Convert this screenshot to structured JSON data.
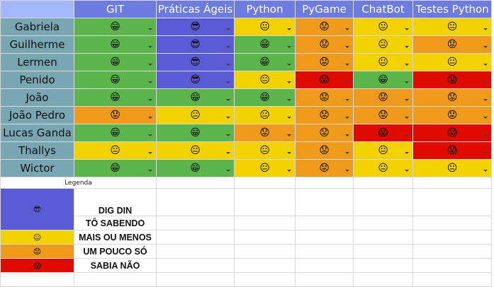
{
  "sheet": {
    "columns": [
      "GIT",
      "Práticas Ágeis",
      "Python",
      "PyGame",
      "ChatBot",
      "Testes Python"
    ],
    "rows": [
      {
        "name": "Gabriela",
        "levels": [
          "sab",
          "dig",
          "mai",
          "pou",
          "mai",
          "mai"
        ]
      },
      {
        "name": "Guilherme",
        "levels": [
          "sab",
          "dig",
          "sab",
          "pou",
          "mai",
          "pou"
        ]
      },
      {
        "name": "Lermen",
        "levels": [
          "sab",
          "dig",
          "sab",
          "pou",
          "mai",
          "mai"
        ]
      },
      {
        "name": "Penido",
        "levels": [
          "sab",
          "dig",
          "mai",
          "nao",
          "sab",
          "nao"
        ]
      },
      {
        "name": "João",
        "levels": [
          "sab",
          "sab",
          "sab",
          "pou",
          "pou",
          "pou"
        ]
      },
      {
        "name": "João Pedro",
        "levels": [
          "pou",
          "mai",
          "mai",
          "pou",
          "pou",
          "pou"
        ]
      },
      {
        "name": "Lucas Ganda",
        "levels": [
          "sab",
          "sab",
          "pou",
          "pou",
          "nao",
          "nao"
        ]
      },
      {
        "name": "Thallys",
        "levels": [
          "mai",
          "mai",
          "mai",
          "pou",
          "mai",
          "nao"
        ]
      },
      {
        "name": "Wictor",
        "levels": [
          "sab",
          "sab",
          "mai",
          "pou",
          "mai",
          "mai"
        ]
      }
    ]
  },
  "levels": {
    "dig": {
      "face": "😎",
      "color": "#5b5bd6"
    },
    "sab": {
      "face": "😁",
      "color": "#5bb54a"
    },
    "mai": {
      "face": "😐",
      "color": "#f2d200"
    },
    "pou": {
      "face": "😟",
      "color": "#ef9a1a"
    },
    "nao": {
      "face": "😱",
      "color": "#df0b00"
    }
  },
  "legend": {
    "title": "Legenda",
    "items": [
      {
        "key": "dig",
        "label": "DIG DIN"
      },
      {
        "key": "sab",
        "label": "TÔ SABENDO"
      },
      {
        "key": "mai",
        "label": "MAIS OU MENOS"
      },
      {
        "key": "pou",
        "label": "UM POUCO SÓ"
      },
      {
        "key": "nao",
        "label": "SABIA NÃO"
      }
    ]
  }
}
